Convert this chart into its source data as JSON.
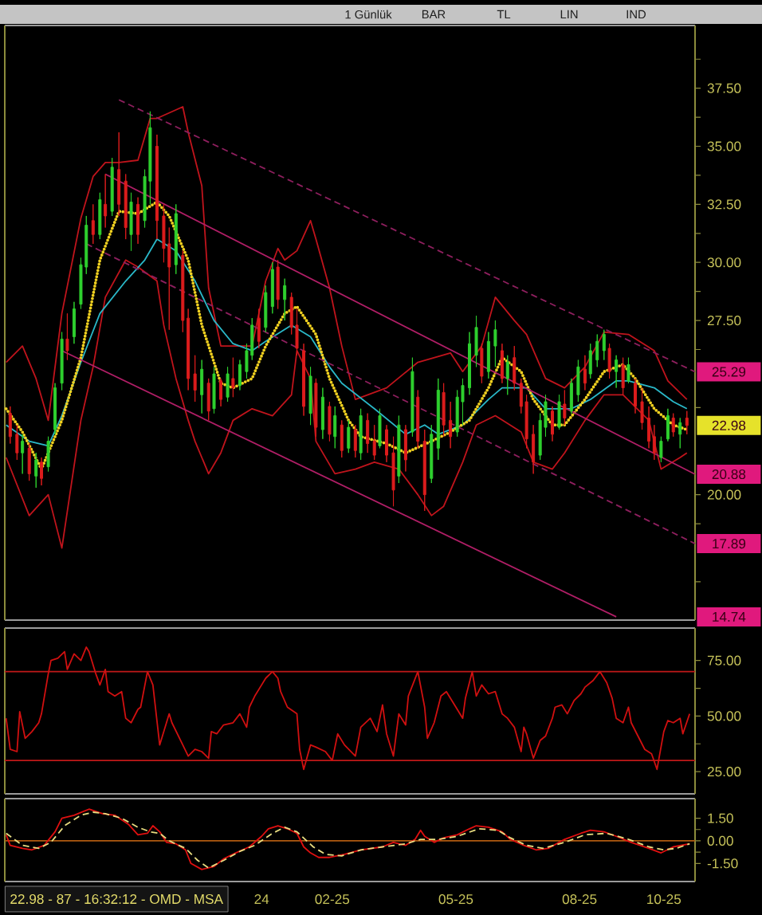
{
  "chart_data": [
    {
      "type": "candlestick",
      "x": [
        "2024-06-22",
        "2024-06-27",
        "2024-07-01",
        "2024-07-06",
        "2024-07-11",
        "2024-07-15",
        "2024-07-20",
        "2024-07-25",
        "2024-07-30",
        "2024-08-03",
        "2024-08-08",
        "2024-08-13",
        "2024-08-17",
        "2024-08-22",
        "2024-08-27",
        "2024-08-31",
        "2024-09-05",
        "2024-09-10",
        "2024-09-15",
        "2024-09-19",
        "2024-09-24",
        "2024-09-29",
        "2024-10-03",
        "2024-10-08",
        "2024-10-13",
        "2024-10-17",
        "2024-10-22",
        "2024-10-27",
        "2024-10-31",
        "2024-11-05",
        "2024-11-10",
        "2024-11-15",
        "2024-11-19",
        "2024-11-24",
        "2024-11-29",
        "2024-12-03",
        "2024-12-08",
        "2024-12-13",
        "2024-12-17",
        "2024-12-22",
        "2024-12-27",
        "2025-01-01",
        "2025-01-05",
        "2025-01-10",
        "2025-01-15",
        "2025-01-19",
        "2025-01-24",
        "2025-01-29",
        "2025-02-02",
        "2025-02-07",
        "2025-02-12",
        "2025-02-16",
        "2025-02-21",
        "2025-02-26",
        "2025-03-03",
        "2025-03-07",
        "2025-03-12",
        "2025-03-17",
        "2025-03-21",
        "2025-03-26",
        "2025-03-31",
        "2025-04-04",
        "2025-04-09",
        "2025-04-14",
        "2025-04-18",
        "2025-04-23",
        "2025-04-28",
        "2025-05-03",
        "2025-05-07",
        "2025-05-12",
        "2025-05-17",
        "2025-05-21",
        "2025-05-26",
        "2025-05-31",
        "2025-06-04",
        "2025-06-09",
        "2025-06-14",
        "2025-06-19",
        "2025-06-23",
        "2025-06-28",
        "2025-07-03",
        "2025-07-07",
        "2025-07-12",
        "2025-07-17",
        "2025-07-21",
        "2025-07-26",
        "2025-07-31",
        "2025-08-04",
        "2025-08-09",
        "2025-08-14",
        "2025-08-19",
        "2025-08-23",
        "2025-08-28",
        "2025-09-02",
        "2025-09-06",
        "2025-09-11",
        "2025-09-16",
        "2025-09-20",
        "2025-09-25",
        "2025-09-30",
        "2025-10-05",
        "2025-10-09",
        "2025-10-14",
        "2025-10-19",
        "2025-10-23",
        "2025-10-28",
        "2025-11-02"
      ],
      "ohlc": [
        [
          23.5,
          23.8,
          22.2,
          22.5
        ],
        [
          22.6,
          23.0,
          21.5,
          21.8
        ],
        [
          21.8,
          22.6,
          20.9,
          22.3
        ],
        [
          22.0,
          22.2,
          20.6,
          20.9
        ],
        [
          20.8,
          21.8,
          20.3,
          21.5
        ],
        [
          21.4,
          21.6,
          20.4,
          20.7
        ],
        [
          21.2,
          22.5,
          21.0,
          22.3
        ],
        [
          22.8,
          24.8,
          22.6,
          24.6
        ],
        [
          24.8,
          27.0,
          24.5,
          26.7
        ],
        [
          26.7,
          27.8,
          25.8,
          26.2
        ],
        [
          26.8,
          28.3,
          26.5,
          28.0
        ],
        [
          28.2,
          30.2,
          28.0,
          29.9
        ],
        [
          29.8,
          32.0,
          29.5,
          31.6
        ],
        [
          31.8,
          32.5,
          30.8,
          31.2
        ],
        [
          31.2,
          33.0,
          31.0,
          32.7
        ],
        [
          32.5,
          33.8,
          31.5,
          32.0
        ],
        [
          32.2,
          34.5,
          32.0,
          34.1
        ],
        [
          34.0,
          35.6,
          32.0,
          32.5
        ],
        [
          33.5,
          33.8,
          31.0,
          31.5
        ],
        [
          31.2,
          33.0,
          30.5,
          32.6
        ],
        [
          32.5,
          32.8,
          30.8,
          31.2
        ],
        [
          31.8,
          34.0,
          31.5,
          33.7
        ],
        [
          33.5,
          36.5,
          32.5,
          35.8
        ],
        [
          35.0,
          35.5,
          31.0,
          31.8
        ],
        [
          32.0,
          32.5,
          30.0,
          30.6
        ],
        [
          30.8,
          31.5,
          27.1,
          29.8
        ],
        [
          29.9,
          32.5,
          29.5,
          32.1
        ],
        [
          30.3,
          30.5,
          27.0,
          27.5
        ],
        [
          27.6,
          28.0,
          24.5,
          25.0
        ],
        [
          25.2,
          26.0,
          24.0,
          24.5
        ],
        [
          24.3,
          25.8,
          23.5,
          25.4
        ],
        [
          24.8,
          25.0,
          23.2,
          23.6
        ],
        [
          23.7,
          25.5,
          23.5,
          25.2
        ],
        [
          24.9,
          25.0,
          23.8,
          24.1
        ],
        [
          24.2,
          25.5,
          24.0,
          25.2
        ],
        [
          25.0,
          25.9,
          24.2,
          24.6
        ],
        [
          24.7,
          25.8,
          24.5,
          25.6
        ],
        [
          25.3,
          26.5,
          25.0,
          26.2
        ],
        [
          26.0,
          27.6,
          25.8,
          27.3
        ],
        [
          27.6,
          28.0,
          26.3,
          26.6
        ],
        [
          27.2,
          29.0,
          27.0,
          28.7
        ],
        [
          28.1,
          30.0,
          27.8,
          29.7
        ],
        [
          29.8,
          30.1,
          28.0,
          28.4
        ],
        [
          28.4,
          29.3,
          27.5,
          29.0
        ],
        [
          28.5,
          28.7,
          26.9,
          27.2
        ],
        [
          27.3,
          28.0,
          26.0,
          26.3
        ],
        [
          26.2,
          26.5,
          23.4,
          23.8
        ],
        [
          23.5,
          25.5,
          23.0,
          25.1
        ],
        [
          24.8,
          25.0,
          22.5,
          22.9
        ],
        [
          22.8,
          24.6,
          22.4,
          24.2
        ],
        [
          23.8,
          24.0,
          22.3,
          22.6
        ],
        [
          22.5,
          23.8,
          22.0,
          23.4
        ],
        [
          23.0,
          23.2,
          21.6,
          21.9
        ],
        [
          22.0,
          23.2,
          21.8,
          22.9
        ],
        [
          22.8,
          23.0,
          21.6,
          21.9
        ],
        [
          21.8,
          23.7,
          21.5,
          23.4
        ],
        [
          23.2,
          23.5,
          21.8,
          22.2
        ],
        [
          22.3,
          23.0,
          21.5,
          21.7
        ],
        [
          22.1,
          23.7,
          22.0,
          23.4
        ],
        [
          22.8,
          23.0,
          21.4,
          21.7
        ],
        [
          21.8,
          22.5,
          19.5,
          20.2
        ],
        [
          20.8,
          23.4,
          20.5,
          23.0
        ],
        [
          22.8,
          23.0,
          21.0,
          21.5
        ],
        [
          22.7,
          25.9,
          22.5,
          25.3
        ],
        [
          24.2,
          24.5,
          22.0,
          22.3
        ],
        [
          22.3,
          22.8,
          19.3,
          20.0
        ],
        [
          20.7,
          23.0,
          20.5,
          22.6
        ],
        [
          22.0,
          25.0,
          21.5,
          24.5
        ],
        [
          24.4,
          24.8,
          22.5,
          23.0
        ],
        [
          23.2,
          24.0,
          22.0,
          22.5
        ],
        [
          22.7,
          24.5,
          22.5,
          24.2
        ],
        [
          24.0,
          25.0,
          23.0,
          24.7
        ],
        [
          24.6,
          27.0,
          24.3,
          26.5
        ],
        [
          26.0,
          27.7,
          25.5,
          27.2
        ],
        [
          26.3,
          26.5,
          24.8,
          25.1
        ],
        [
          25.3,
          27.0,
          25.0,
          26.6
        ],
        [
          26.4,
          27.5,
          25.5,
          27.1
        ],
        [
          26.2,
          26.5,
          24.8,
          25.0
        ],
        [
          25.0,
          26.0,
          24.3,
          25.7
        ],
        [
          25.9,
          26.4,
          24.5,
          24.8
        ],
        [
          24.8,
          25.0,
          23.5,
          23.8
        ],
        [
          24.0,
          24.3,
          22.0,
          22.4
        ],
        [
          22.6,
          23.0,
          20.9,
          21.4
        ],
        [
          21.7,
          23.5,
          21.5,
          23.2
        ],
        [
          22.9,
          24.3,
          22.5,
          24.0
        ],
        [
          23.6,
          23.8,
          22.3,
          22.6
        ],
        [
          22.9,
          24.3,
          22.8,
          24.0
        ],
        [
          23.9,
          24.5,
          23.0,
          23.3
        ],
        [
          23.6,
          25.0,
          23.5,
          24.8
        ],
        [
          24.3,
          25.8,
          24.0,
          25.5
        ],
        [
          25.4,
          26.0,
          24.5,
          24.8
        ],
        [
          25.2,
          26.5,
          25.0,
          26.2
        ],
        [
          25.8,
          26.9,
          25.5,
          26.6
        ],
        [
          26.2,
          27.1,
          25.8,
          26.9
        ],
        [
          26.3,
          26.5,
          25.0,
          25.3
        ],
        [
          25.3,
          26.0,
          24.6,
          25.8
        ],
        [
          25.6,
          25.9,
          24.3,
          24.6
        ],
        [
          24.9,
          25.9,
          24.8,
          25.6
        ],
        [
          24.8,
          25.0,
          23.5,
          23.8
        ],
        [
          24.0,
          24.6,
          22.8,
          23.1
        ],
        [
          23.3,
          23.8,
          22.0,
          22.3
        ],
        [
          22.5,
          23.0,
          21.5,
          21.8
        ],
        [
          21.6,
          22.5,
          21.4,
          22.3
        ],
        [
          22.4,
          23.7,
          22.3,
          23.4
        ],
        [
          23.3,
          23.5,
          22.5,
          22.7
        ],
        [
          22.6,
          23.3,
          22.0,
          23.1
        ],
        [
          23.3,
          23.6,
          22.6,
          22.98
        ]
      ],
      "series": [
        {
          "type": "line",
          "color": "#c0141c",
          "line_style": "solid",
          "x": [
            "2024-06-19",
            "2024-07-01",
            "2024-07-11",
            "2024-07-20",
            "2024-07-30",
            "2024-08-13",
            "2024-08-22",
            "2024-08-31",
            "2024-09-10",
            "2024-09-24",
            "2024-10-03",
            "2024-10-08",
            "2024-10-27",
            "2024-10-31",
            "2024-11-10",
            "2024-11-15",
            "2024-11-24",
            "2024-12-17",
            "2024-12-27",
            "2025-01-05",
            "2025-01-10",
            "2025-01-19",
            "2025-01-29",
            "2025-02-02",
            "2025-02-12",
            "2025-02-21",
            "2025-03-03",
            "2025-03-26",
            "2025-04-18",
            "2025-05-12",
            "2025-05-21",
            "2025-06-04",
            "2025-06-14",
            "2025-06-28",
            "2025-07-07",
            "2025-07-21",
            "2025-08-04",
            "2025-08-19",
            "2025-09-02",
            "2025-09-20",
            "2025-10-09",
            "2025-10-19",
            "2025-11-02"
          ],
          "values": [
            25.7,
            26.4,
            25.0,
            23.2,
            27.8,
            31.9,
            33.7,
            34.3,
            34.3,
            34.4,
            36.2,
            36.2,
            36.7,
            35.6,
            33.3,
            28.9,
            26.4,
            26.4,
            29.2,
            30.6,
            30.1,
            30.5,
            31.8,
            31.0,
            28.9,
            26.4,
            24.1,
            24.6,
            25.7,
            26.1,
            25.3,
            26.4,
            28.5,
            27.5,
            26.9,
            25.0,
            24.6,
            25.5,
            27.0,
            26.9,
            26.2,
            24.9,
            24.1
          ]
        },
        {
          "type": "line",
          "color": "#c0141c",
          "line_style": "solid",
          "x": [
            "2024-06-19",
            "2024-07-06",
            "2024-07-20",
            "2024-07-30",
            "2024-08-13",
            "2024-08-22",
            "2024-08-31",
            "2024-09-15",
            "2024-09-24",
            "2024-10-08",
            "2024-10-13",
            "2024-10-22",
            "2024-10-31",
            "2024-11-05",
            "2024-11-15",
            "2024-11-24",
            "2024-12-03",
            "2024-12-17",
            "2025-01-01",
            "2025-01-15",
            "2025-01-19",
            "2025-01-29",
            "2025-02-02",
            "2025-02-16",
            "2025-03-03",
            "2025-03-17",
            "2025-04-04",
            "2025-04-18",
            "2025-04-28",
            "2025-05-07",
            "2025-05-21",
            "2025-05-31",
            "2025-06-14",
            "2025-07-03",
            "2025-07-12",
            "2025-07-26",
            "2025-08-04",
            "2025-08-19",
            "2025-09-02",
            "2025-09-16",
            "2025-10-05",
            "2025-10-14",
            "2025-10-28",
            "2025-11-02"
          ],
          "values": [
            21.6,
            19.1,
            20.0,
            17.7,
            23.2,
            25.5,
            28.5,
            30.1,
            29.8,
            29.2,
            27.3,
            25.0,
            23.2,
            22.3,
            20.9,
            21.8,
            23.2,
            23.7,
            23.4,
            24.3,
            26.2,
            25.0,
            22.3,
            20.9,
            21.1,
            21.4,
            21.1,
            20.0,
            19.1,
            19.5,
            21.4,
            23.0,
            23.4,
            22.7,
            21.4,
            21.1,
            21.8,
            23.2,
            24.3,
            24.3,
            23.2,
            21.1,
            21.6,
            21.8
          ]
        },
        {
          "type": "line",
          "color": "#2ab8c8",
          "line_style": "solid",
          "x": [
            "2024-06-19",
            "2024-07-06",
            "2024-07-20",
            "2024-07-30",
            "2024-08-13",
            "2024-08-27",
            "2024-09-15",
            "2024-09-29",
            "2024-10-08",
            "2024-10-22",
            "2024-11-05",
            "2024-11-19",
            "2024-12-03",
            "2024-12-17",
            "2024-12-27",
            "2025-01-15",
            "2025-01-29",
            "2025-02-12",
            "2025-02-21",
            "2025-03-17",
            "2025-04-09",
            "2025-04-23",
            "2025-05-03",
            "2025-05-21",
            "2025-06-09",
            "2025-06-19",
            "2025-07-07",
            "2025-07-21",
            "2025-08-09",
            "2025-08-23",
            "2025-09-11",
            "2025-09-20",
            "2025-10-09",
            "2025-10-23",
            "2025-11-02"
          ],
          "values": [
            23.0,
            22.3,
            22.1,
            23.4,
            25.7,
            27.8,
            29.2,
            30.1,
            31.0,
            30.5,
            29.2,
            27.5,
            26.5,
            26.2,
            26.6,
            27.3,
            26.8,
            25.5,
            24.8,
            23.7,
            22.6,
            23.0,
            22.6,
            23.0,
            24.1,
            24.6,
            24.6,
            23.7,
            23.7,
            24.1,
            24.9,
            24.9,
            24.6,
            24.0,
            23.7
          ]
        },
        {
          "type": "line",
          "color": "#f0d020",
          "line_style": "dotted",
          "x": [
            "2024-06-19",
            "2024-07-01",
            "2024-07-15",
            "2024-07-30",
            "2024-08-13",
            "2024-08-27",
            "2024-09-10",
            "2024-09-24",
            "2024-10-08",
            "2024-10-17",
            "2024-10-31",
            "2024-11-10",
            "2024-11-24",
            "2024-12-03",
            "2024-12-17",
            "2024-12-27",
            "2025-01-10",
            "2025-01-19",
            "2025-02-02",
            "2025-02-12",
            "2025-02-26",
            "2025-03-07",
            "2025-03-26",
            "2025-04-09",
            "2025-04-28",
            "2025-05-12",
            "2025-05-26",
            "2025-06-09",
            "2025-06-19",
            "2025-07-03",
            "2025-07-12",
            "2025-07-26",
            "2025-08-04",
            "2025-08-19",
            "2025-09-02",
            "2025-09-16",
            "2025-09-25",
            "2025-10-09",
            "2025-10-23",
            "2025-11-02"
          ],
          "values": [
            23.7,
            22.7,
            21.1,
            23.2,
            25.9,
            30.1,
            32.2,
            32.1,
            32.6,
            32.0,
            30.1,
            27.3,
            24.8,
            24.6,
            25.0,
            26.4,
            27.8,
            28.1,
            26.9,
            25.0,
            23.2,
            22.5,
            22.2,
            21.8,
            22.3,
            22.7,
            23.2,
            24.6,
            25.9,
            25.3,
            24.1,
            23.0,
            23.0,
            24.1,
            25.3,
            25.6,
            25.0,
            23.7,
            23.0,
            22.8
          ]
        },
        {
          "type": "line",
          "color": "#8e1f5e",
          "line_style": "dashed",
          "x": [
            "2024-09-10",
            "2025-11-08"
          ],
          "values": [
            37.0,
            25.29
          ]
        },
        {
          "type": "line",
          "color": "#b01e66",
          "line_style": "solid",
          "x": [
            "2024-08-31",
            "2025-11-08"
          ],
          "values": [
            33.8,
            20.88
          ]
        },
        {
          "type": "line",
          "color": "#8e1f5e",
          "line_style": "dashed",
          "x": [
            "2024-08-17",
            "2025-11-08"
          ],
          "values": [
            30.8,
            17.89
          ]
        },
        {
          "type": "line",
          "color": "#b01e66",
          "line_style": "solid",
          "x": [
            "2024-07-30",
            "2025-09-11"
          ],
          "values": [
            26.2,
            14.74
          ]
        }
      ],
      "xlim": [
        "2024-06-18",
        "2025-11-08"
      ],
      "ylim": [
        14.6,
        40.2
      ],
      "yticks": [
        {
          "value": 16.25,
          "label": null
        },
        {
          "value": 18.75,
          "label": null
        },
        {
          "value": 20,
          "label": "20.00"
        },
        {
          "value": 23.75,
          "label": null
        },
        {
          "value": 26.25,
          "label": null
        },
        {
          "value": 27.5,
          "label": "27.50"
        },
        {
          "value": 28.75,
          "label": null
        },
        {
          "value": 30,
          "label": "30.00"
        },
        {
          "value": 31.25,
          "label": null
        },
        {
          "value": 32.5,
          "label": "32.50"
        },
        {
          "value": 33.75,
          "label": null
        },
        {
          "value": 35,
          "label": "35.00"
        },
        {
          "value": 36.25,
          "label": null
        },
        {
          "value": 37.5,
          "label": "37.50"
        },
        {
          "value": 38.75,
          "label": null
        }
      ],
      "tick_labels": "y",
      "annotations": [
        "1 Günlük",
        "BAR",
        "TL",
        "LIN",
        "IND",
        {
          "text": "25.29",
          "x": "2025-11-08",
          "y": 25.29
        },
        {
          "text": "22.98",
          "x": "2025-11-02",
          "y": 22.98
        },
        {
          "text": "20.88",
          "x": "2025-11-08",
          "y": 20.88
        },
        {
          "text": "17.89",
          "x": "2025-11-08",
          "y": 17.89
        },
        {
          "text": "14.74",
          "y": 14.74
        }
      ]
    },
    {
      "type": "line",
      "series": [
        {
          "color": "#d01010",
          "x": [
            "2024-06-19",
            "2024-06-22",
            "2024-06-27",
            "2024-06-29",
            "2024-07-03",
            "2024-07-08",
            "2024-07-13",
            "2024-07-15",
            "2024-07-20",
            "2024-07-22",
            "2024-07-27",
            "2024-08-01",
            "2024-08-03",
            "2024-08-08",
            "2024-08-13",
            "2024-08-17",
            "2024-08-19",
            "2024-08-24",
            "2024-08-27",
            "2024-08-31",
            "2024-09-02",
            "2024-09-07",
            "2024-09-12",
            "2024-09-15",
            "2024-09-19",
            "2024-09-24",
            "2024-09-26",
            "2024-10-01",
            "2024-10-05",
            "2024-10-10",
            "2024-10-17",
            "2024-10-19",
            "2024-10-27",
            "2024-10-31",
            "2024-11-05",
            "2024-11-10",
            "2024-11-15",
            "2024-11-17",
            "2024-11-21",
            "2024-11-26",
            "2024-12-03",
            "2024-12-08",
            "2024-12-13",
            "2024-12-15",
            "2024-12-19",
            "2024-12-24",
            "2024-12-27",
            "2025-01-01",
            "2025-01-05",
            "2025-01-07",
            "2025-01-12",
            "2025-01-19",
            "2025-01-21",
            "2025-01-24",
            "2025-01-29",
            "2025-02-02",
            "2025-02-09",
            "2025-02-14",
            "2025-02-18",
            "2025-02-23",
            "2025-03-03",
            "2025-03-07",
            "2025-03-14",
            "2025-03-19",
            "2025-03-23",
            "2025-03-26",
            "2025-03-31",
            "2025-04-04",
            "2025-04-09",
            "2025-04-11",
            "2025-04-18",
            "2025-04-23",
            "2025-04-25",
            "2025-04-30",
            "2025-05-05",
            "2025-05-09",
            "2025-05-17",
            "2025-05-21",
            "2025-05-23",
            "2025-05-28",
            "2025-05-31",
            "2025-06-04",
            "2025-06-09",
            "2025-06-14",
            "2025-06-19",
            "2025-06-23",
            "2025-06-28",
            "2025-07-03",
            "2025-07-05",
            "2025-07-07",
            "2025-07-12",
            "2025-07-17",
            "2025-07-21",
            "2025-07-26",
            "2025-07-28",
            "2025-08-02",
            "2025-08-06",
            "2025-08-11",
            "2025-08-16",
            "2025-08-19",
            "2025-08-25",
            "2025-08-30",
            "2025-09-04",
            "2025-09-08",
            "2025-09-11",
            "2025-09-16",
            "2025-09-20",
            "2025-09-22",
            "2025-09-27",
            "2025-10-02",
            "2025-10-07",
            "2025-10-11",
            "2025-10-16",
            "2025-10-19",
            "2025-10-23",
            "2025-10-28",
            "2025-10-30",
            "2025-11-04"
          ],
          "values": [
            49,
            35,
            34,
            52,
            40,
            43,
            47,
            51,
            69,
            75,
            76,
            79,
            71,
            78,
            75,
            81,
            79,
            69,
            64,
            71,
            61,
            59,
            61,
            49,
            47,
            53,
            54,
            70,
            64,
            37,
            51,
            47,
            37,
            32,
            35,
            34,
            31,
            43,
            42,
            46,
            47,
            51,
            45,
            54,
            59,
            64,
            67,
            70,
            67,
            61,
            54,
            51,
            35,
            26,
            37,
            36,
            34,
            30,
            42,
            37,
            32,
            45,
            49,
            43,
            55,
            42,
            32,
            51,
            46,
            59,
            70,
            54,
            40,
            47,
            59,
            61,
            53,
            49,
            58,
            70,
            59,
            64,
            60,
            61,
            51,
            49,
            45,
            34,
            45,
            42,
            31,
            39,
            41,
            49,
            54,
            55,
            51,
            57,
            60,
            63,
            66,
            70,
            65,
            58,
            49,
            47,
            54,
            47,
            41,
            35,
            33,
            26,
            43,
            48,
            47,
            49,
            42,
            51
          ]
        }
      ],
      "xlim": [
        "2024-06-18",
        "2025-11-08"
      ],
      "ylim": [
        15,
        89.6
      ],
      "yticks": [
        {
          "value": 25,
          "label": "25.00"
        },
        {
          "value": 37.5,
          "label": null
        },
        {
          "value": 50,
          "label": "50.00"
        },
        {
          "value": 62.5,
          "label": null
        },
        {
          "value": 75,
          "label": "75.00"
        }
      ],
      "tick_labels": "y",
      "ref_lines": [
        {
          "axis": "y",
          "value": 70,
          "color": "#c01818"
        },
        {
          "axis": "y",
          "value": 30,
          "color": "#c01818"
        }
      ]
    },
    {
      "type": "line",
      "series": [
        {
          "color": "#e01010",
          "line_style": "solid",
          "x": [
            "2024-06-19",
            "2024-06-22",
            "2024-07-01",
            "2024-07-08",
            "2024-07-17",
            "2024-07-25",
            "2024-07-30",
            "2024-08-08",
            "2024-08-19",
            "2024-08-29",
            "2024-09-07",
            "2024-09-17",
            "2024-09-24",
            "2024-10-01",
            "2024-10-05",
            "2024-10-10",
            "2024-10-15",
            "2024-10-22",
            "2024-10-29",
            "2024-11-02",
            "2024-11-10",
            "2024-11-19",
            "2024-11-26",
            "2024-12-05",
            "2024-12-15",
            "2024-12-24",
            "2024-12-29",
            "2025-01-05",
            "2025-01-12",
            "2025-01-19",
            "2025-01-24",
            "2025-01-29",
            "2025-02-04",
            "2025-02-12",
            "2025-02-23",
            "2025-03-07",
            "2025-03-23",
            "2025-03-31",
            "2025-04-09",
            "2025-04-16",
            "2025-04-20",
            "2025-04-23",
            "2025-04-30",
            "2025-05-07",
            "2025-05-17",
            "2025-05-26",
            "2025-05-31",
            "2025-06-09",
            "2025-06-19",
            "2025-06-25",
            "2025-07-05",
            "2025-07-14",
            "2025-07-23",
            "2025-08-04",
            "2025-08-16",
            "2025-08-23",
            "2025-09-02",
            "2025-09-11",
            "2025-09-22",
            "2025-10-05",
            "2025-10-14",
            "2025-10-23",
            "2025-11-04"
          ],
          "values": [
            0.4,
            -0.3,
            -0.5,
            -0.6,
            -0.3,
            0.6,
            1.5,
            1.7,
            2.1,
            1.8,
            1.7,
            1.1,
            0.4,
            0.5,
            1.0,
            0.6,
            -0.1,
            -0.2,
            -0.6,
            -1.5,
            -1.9,
            -1.7,
            -1.2,
            -0.8,
            -0.4,
            0.3,
            0.8,
            1.0,
            0.8,
            0.5,
            -0.4,
            -0.8,
            -1.1,
            -1.1,
            -0.9,
            -0.6,
            -0.4,
            -0.1,
            -0.3,
            0.1,
            0.7,
            0.3,
            -0.1,
            0.2,
            0.4,
            0.8,
            1.0,
            0.9,
            0.6,
            0.1,
            -0.3,
            -0.6,
            -0.5,
            0.1,
            0.5,
            0.7,
            0.6,
            0.3,
            -0.1,
            -0.5,
            -0.8,
            -0.4,
            -0.2
          ]
        },
        {
          "color": "#e8dc80",
          "line_style": "dashed",
          "x": [
            "2024-06-19",
            "2024-07-01",
            "2024-07-13",
            "2024-07-22",
            "2024-08-01",
            "2024-08-13",
            "2024-08-22",
            "2024-08-31",
            "2024-09-12",
            "2024-09-24",
            "2024-10-03",
            "2024-10-10",
            "2024-10-17",
            "2024-10-29",
            "2024-11-07",
            "2024-11-15",
            "2024-11-26",
            "2024-12-08",
            "2024-12-19",
            "2025-01-01",
            "2025-01-10",
            "2025-01-19",
            "2025-01-31",
            "2025-02-09",
            "2025-02-21",
            "2025-03-07",
            "2025-03-23",
            "2025-04-09",
            "2025-04-20",
            "2025-05-03",
            "2025-05-17",
            "2025-06-02",
            "2025-06-16",
            "2025-06-25",
            "2025-07-07",
            "2025-07-19",
            "2025-08-04",
            "2025-08-19",
            "2025-09-04",
            "2025-09-20",
            "2025-10-05",
            "2025-10-16",
            "2025-10-25",
            "2025-11-04"
          ],
          "values": [
            0.5,
            -0.3,
            -0.5,
            -0.1,
            1.0,
            1.7,
            1.9,
            1.8,
            1.5,
            0.9,
            0.6,
            0.5,
            0.0,
            -0.5,
            -1.3,
            -1.8,
            -1.3,
            -0.7,
            -0.3,
            0.5,
            0.9,
            0.6,
            -0.4,
            -0.9,
            -1.0,
            -0.6,
            -0.4,
            -0.2,
            0.1,
            0.1,
            0.3,
            0.8,
            0.7,
            0.2,
            -0.3,
            -0.5,
            -0.1,
            0.4,
            0.5,
            0.1,
            -0.4,
            -0.6,
            -0.5,
            -0.2
          ]
        }
      ],
      "xlim": [
        "2024-06-18",
        "2025-11-08"
      ],
      "ylim": [
        -2.7,
        2.8
      ],
      "xticks": [
        {
          "value": "2024-12-24",
          "label": "24"
        },
        {
          "value": "2025-02-14",
          "label": "02-25"
        },
        {
          "value": "2025-05-16",
          "label": "05-25"
        },
        {
          "value": "2025-08-15",
          "label": "08-25"
        },
        {
          "value": "2025-10-16",
          "label": "10-25"
        }
      ],
      "yticks": [
        {
          "value": -1.5,
          "label": "-1.50"
        },
        {
          "value": -0.75,
          "label": null
        },
        {
          "value": 0,
          "label": "0.00"
        },
        {
          "value": 0.75,
          "label": null
        },
        {
          "value": 1.5,
          "label": "1.50"
        }
      ],
      "ref_lines": [
        {
          "axis": "y",
          "value": 0,
          "color": "#b05a10"
        }
      ],
      "annotations": [
        "22.98 - 87 - 16:32:12 - OMD - MSA"
      ]
    }
  ]
}
